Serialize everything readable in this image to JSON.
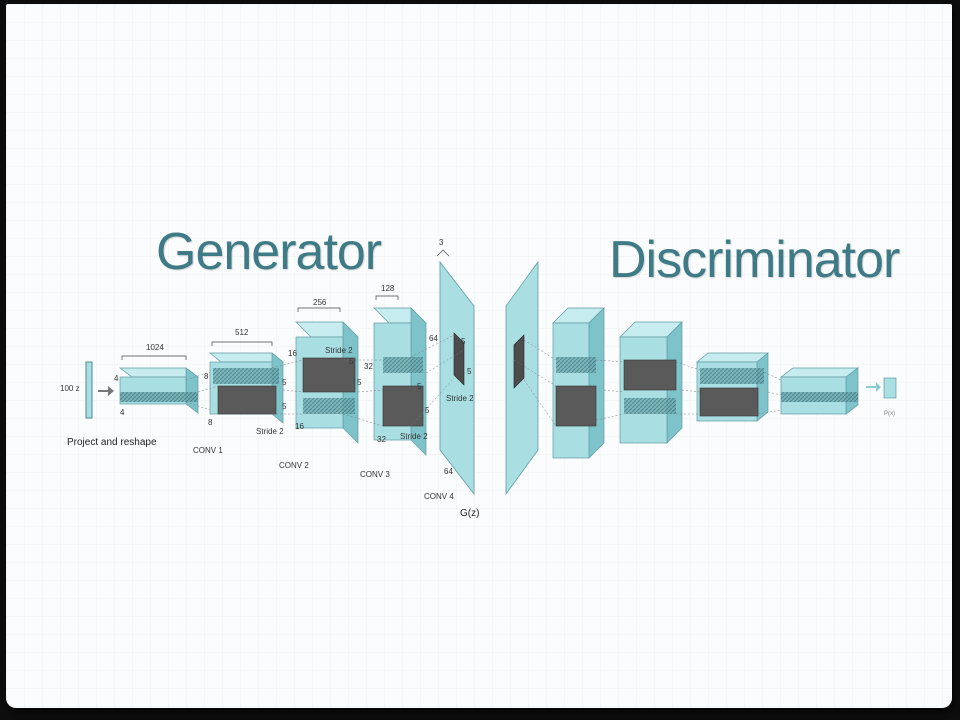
{
  "titles": {
    "generator": "Generator",
    "discriminator": "Discriminator"
  },
  "generator": {
    "input_label": "100 z",
    "project_label": "Project and reshape",
    "blocks": [
      {
        "name": "project",
        "depth": "1024",
        "size": "4"
      },
      {
        "name": "conv1",
        "label": "CONV 1",
        "depth": "512",
        "size": "8",
        "stride": "Stride 2",
        "kernel": "5"
      },
      {
        "name": "conv2",
        "label": "CONV 2",
        "depth": "256",
        "size": "16",
        "stride": "Stride 2",
        "kernel": "5"
      },
      {
        "name": "conv3",
        "label": "CONV 3",
        "depth": "128",
        "size": "32",
        "stride": "Stride 2",
        "kernel": "5"
      },
      {
        "name": "conv4",
        "label": "CONV 4",
        "depth": "3",
        "size": "64",
        "stride": "Stride 2",
        "kernel": "5"
      }
    ],
    "output_label": "G(z)"
  },
  "discriminator": {
    "output_label": "P(x)"
  },
  "colors": {
    "face": "#a9dee3",
    "title": "#3f7b86",
    "dark": "#555555"
  }
}
